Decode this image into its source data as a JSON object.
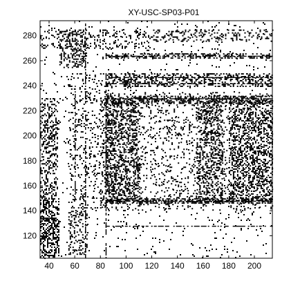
{
  "chart_data": {
    "type": "heatmap",
    "title": "XY-USC-SP03-P01",
    "xlabel": "",
    "ylabel": "",
    "xlim": [
      33,
      214
    ],
    "ylim": [
      102,
      292
    ],
    "x_ticks": [
      40,
      60,
      80,
      100,
      120,
      140,
      160,
      180,
      200
    ],
    "y_ticks": [
      120,
      140,
      160,
      180,
      200,
      220,
      240,
      260,
      280
    ],
    "grid": false,
    "colors": {
      "marks": "#000000",
      "background": "#ffffff",
      "frame": "#000000"
    },
    "regions": [
      {
        "x": [
          33,
          48
        ],
        "y": [
          102,
          150
        ],
        "density": 0.45
      },
      {
        "x": [
          33,
          46
        ],
        "y": [
          150,
          230
        ],
        "density": 0.3
      },
      {
        "x": [
          33,
          120
        ],
        "y": [
          270,
          285
        ],
        "density": 0.15
      },
      {
        "x": [
          48,
          68
        ],
        "y": [
          255,
          285
        ],
        "density": 0.3
      },
      {
        "x": [
          55,
          70
        ],
        "y": [
          105,
          140
        ],
        "density": 0.25
      },
      {
        "x": [
          55,
          90
        ],
        "y": [
          140,
          250
        ],
        "density": 0.12
      },
      {
        "x": [
          80,
          214
        ],
        "y": [
          140,
          235
        ],
        "density": 0.1
      },
      {
        "x": [
          84,
          214
        ],
        "y": [
          240,
          250
        ],
        "density": 0.35
      },
      {
        "x": [
          84,
          214
        ],
        "y": [
          226,
          232
        ],
        "density": 0.45
      },
      {
        "x": [
          84,
          214
        ],
        "y": [
          146,
          150
        ],
        "density": 0.55
      },
      {
        "x": [
          84,
          214
        ],
        "y": [
          262,
          266
        ],
        "density": 0.4
      },
      {
        "x": [
          120,
          214
        ],
        "y": [
          276,
          285
        ],
        "density": 0.2
      },
      {
        "x": [
          84,
          110
        ],
        "y": [
          148,
          228
        ],
        "density": 0.35
      },
      {
        "x": [
          155,
          175
        ],
        "y": [
          148,
          228
        ],
        "density": 0.3
      },
      {
        "x": [
          180,
          214
        ],
        "y": [
          148,
          228
        ],
        "density": 0.35
      },
      {
        "x": [
          33,
          214
        ],
        "y": [
          102,
          292
        ],
        "density": 0.03
      }
    ],
    "lines": [
      {
        "orient": "h",
        "at": 247,
        "from": 84,
        "to": 214
      },
      {
        "orient": "h",
        "at": 242,
        "from": 84,
        "to": 214
      },
      {
        "orient": "h",
        "at": 230,
        "from": 84,
        "to": 214
      },
      {
        "orient": "h",
        "at": 148,
        "from": 84,
        "to": 214
      },
      {
        "orient": "h",
        "at": 128,
        "from": 84,
        "to": 214
      },
      {
        "orient": "h",
        "at": 264,
        "from": 84,
        "to": 214
      },
      {
        "orient": "v",
        "at": 84,
        "from": 102,
        "to": 250
      },
      {
        "orient": "v",
        "at": 68,
        "from": 102,
        "to": 292
      },
      {
        "orient": "v",
        "at": 60,
        "from": 150,
        "to": 240
      }
    ]
  }
}
